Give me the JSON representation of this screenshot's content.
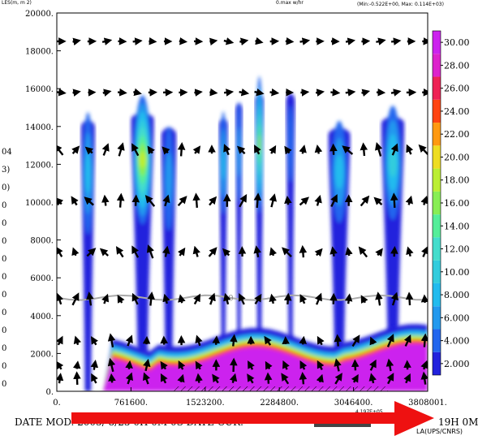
{
  "header": {
    "top_left": "LES(m, m 2)",
    "top_mid": "0.max w/hr",
    "top_right": "(Min:-0.522E+00, Max: 0.114E+03)"
  },
  "left_fragments": [
    "04",
    "3)",
    "0)",
    "0",
    "0",
    "0",
    "0",
    "0",
    "0",
    "0",
    "0",
    "0",
    "0",
    "0"
  ],
  "footer": {
    "date_mod": "DATE MOD. 2005/ 8/23    0H 0M 0S    DATE CUR.",
    "right_time": "19H 0M",
    "credit": "LA(UPS/CNRS)",
    "small_text": "4.197E+05"
  },
  "chart_data": {
    "type": "heatmap",
    "title": "",
    "xlabel": "",
    "ylabel": "",
    "x_ticks": [
      "0.",
      "761600.",
      "1523200.",
      "2284800.",
      "3046400.",
      "3808001."
    ],
    "y_ticks": [
      "0.",
      "2000.",
      "4000.",
      "6000.",
      "8000.",
      "10000.",
      "12000.",
      "14000.",
      "16000.",
      "18000.",
      "20000."
    ],
    "xlim": [
      0,
      3808001
    ],
    "ylim": [
      0,
      20000
    ],
    "colorbar_labels": [
      "2.000",
      "4.000",
      "6.000",
      "8.000",
      "10.00",
      "12.00",
      "14.00",
      "16.00",
      "18.00",
      "20.00",
      "22.00",
      "24.00",
      "26.00",
      "28.00",
      "30.00"
    ],
    "colorbar_values": [
      2,
      4,
      6,
      8,
      10,
      12,
      14,
      16,
      18,
      20,
      22,
      24,
      26,
      28,
      30
    ],
    "colorbar_colors": [
      "#2222dd",
      "#2266ee",
      "#2299ee",
      "#22bbee",
      "#33ccdd",
      "#44ddcc",
      "#55ee99",
      "#88ee55",
      "#bbee33",
      "#eedd22",
      "#ff9911",
      "#ff4411",
      "#ee2255",
      "#dd22cc",
      "#cc22ee"
    ],
    "zero_line_label": "0",
    "zero_line_y": 4950,
    "plumes": [
      {
        "x": 320000,
        "ybase": 0,
        "ytop": 14400,
        "width": 140000,
        "peak": 9
      },
      {
        "x": 880000,
        "ybase": 2000,
        "ytop": 14800,
        "width": 230000,
        "peak": 18
      },
      {
        "x": 1150000,
        "ybase": 200,
        "ytop": 14000,
        "width": 150000,
        "peak": 6
      },
      {
        "x": 1710000,
        "ybase": 2400,
        "ytop": 14500,
        "width": 90000,
        "peak": 8
      },
      {
        "x": 1870000,
        "ybase": 2100,
        "ytop": 15300,
        "width": 70000,
        "peak": 7
      },
      {
        "x": 2080000,
        "ybase": 2000,
        "ytop": 15800,
        "width": 90000,
        "peak": 17
      },
      {
        "x": 2400000,
        "ybase": 2200,
        "ytop": 15800,
        "width": 90000,
        "peak": 5
      },
      {
        "x": 2900000,
        "ybase": 2000,
        "ytop": 14000,
        "width": 220000,
        "peak": 8
      },
      {
        "x": 3450000,
        "ybase": 2000,
        "ytop": 14600,
        "width": 230000,
        "peak": 11
      }
    ]
  }
}
